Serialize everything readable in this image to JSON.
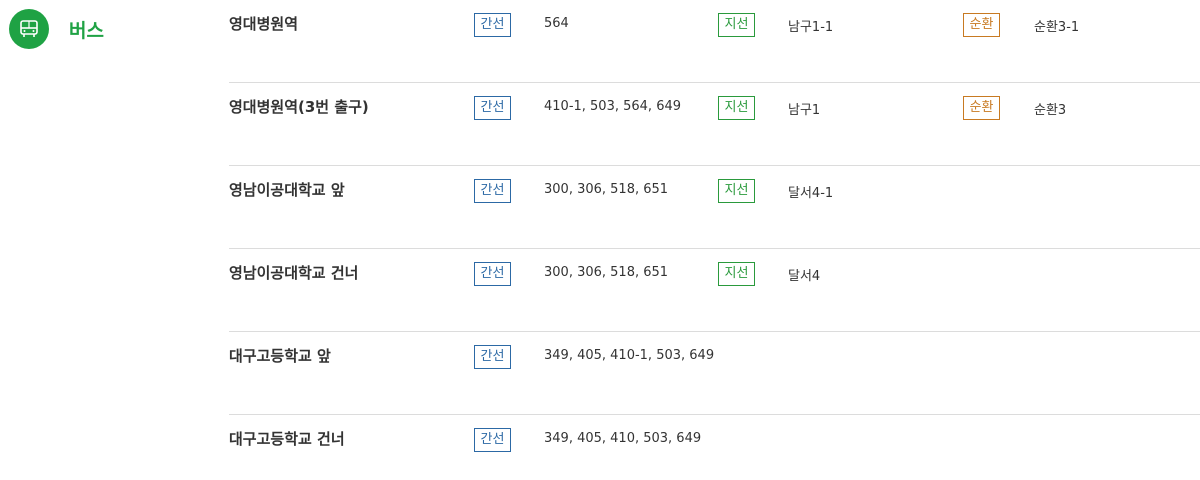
{
  "section": {
    "title": "버스",
    "icon": "bus-icon",
    "accent_color": "#1fa244"
  },
  "badge_labels": {
    "trunk": "간선",
    "branch": "지선",
    "circular": "순환"
  },
  "badge_colors": {
    "trunk": "#2c69a5",
    "branch": "#2a9a3c",
    "circular": "#c87a22"
  },
  "stops": [
    {
      "name": "영대병원역",
      "trunk": "564",
      "branch": "남구1-1",
      "circular": "순환3-1"
    },
    {
      "name": "영대병원역(3번 출구)",
      "trunk": "410-1, 503, 564, 649",
      "branch": "남구1",
      "circular": "순환3"
    },
    {
      "name": "영남이공대학교 앞",
      "trunk": "300, 306, 518, 651",
      "branch": "달서4-1",
      "circular": ""
    },
    {
      "name": "영남이공대학교 건너",
      "trunk": "300, 306, 518, 651",
      "branch": "달서4",
      "circular": ""
    },
    {
      "name": "대구고등학교 앞",
      "trunk": "349, 405, 410-1, 503, 649",
      "branch": "",
      "circular": ""
    },
    {
      "name": "대구고등학교 건너",
      "trunk": "349, 405, 410, 503, 649",
      "branch": "",
      "circular": ""
    }
  ]
}
